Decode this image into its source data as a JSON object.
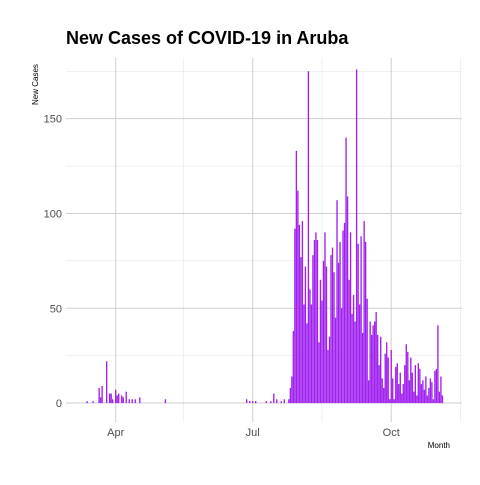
{
  "chart_data": {
    "type": "bar",
    "title": "New Cases of COVID-19 in Aruba",
    "xlabel": "Month",
    "ylabel": "New Cases",
    "x_ticks": [
      "Apr",
      "Jul",
      "Oct"
    ],
    "y_ticks": [
      0,
      50,
      100,
      150
    ],
    "ylim": [
      -10,
      182
    ],
    "xlim": [
      "2020-02-28",
      "2020-11-17"
    ],
    "bar_color": "#a020f0",
    "grid": true,
    "series": [
      {
        "values": [
          [
            "2020-03-13",
            1
          ],
          [
            "2020-03-17",
            1
          ],
          [
            "2020-03-21",
            8
          ],
          [
            "2020-03-22",
            3
          ],
          [
            "2020-03-23",
            9
          ],
          [
            "2020-03-26",
            22
          ],
          [
            "2020-03-28",
            5
          ],
          [
            "2020-03-29",
            5
          ],
          [
            "2020-03-30",
            2
          ],
          [
            "2020-04-01",
            7
          ],
          [
            "2020-04-02",
            4
          ],
          [
            "2020-04-03",
            5
          ],
          [
            "2020-04-05",
            4
          ],
          [
            "2020-04-06",
            3
          ],
          [
            "2020-04-08",
            6
          ],
          [
            "2020-04-10",
            2
          ],
          [
            "2020-04-12",
            2
          ],
          [
            "2020-04-14",
            2
          ],
          [
            "2020-04-17",
            3
          ],
          [
            "2020-05-04",
            2
          ],
          [
            "2020-06-27",
            2
          ],
          [
            "2020-06-29",
            1
          ],
          [
            "2020-07-01",
            1
          ],
          [
            "2020-07-03",
            1
          ],
          [
            "2020-07-10",
            1
          ],
          [
            "2020-07-13",
            1
          ],
          [
            "2020-07-15",
            5
          ],
          [
            "2020-07-17",
            2
          ],
          [
            "2020-07-20",
            1
          ],
          [
            "2020-07-22",
            2
          ],
          [
            "2020-07-25",
            2
          ],
          [
            "2020-07-26",
            8
          ],
          [
            "2020-07-27",
            14
          ],
          [
            "2020-07-28",
            38
          ],
          [
            "2020-07-29",
            92
          ],
          [
            "2020-07-30",
            133
          ],
          [
            "2020-07-31",
            112
          ],
          [
            "2020-08-01",
            94
          ],
          [
            "2020-08-02",
            77
          ],
          [
            "2020-08-03",
            96
          ],
          [
            "2020-08-04",
            52
          ],
          [
            "2020-08-05",
            72
          ],
          [
            "2020-08-06",
            42
          ],
          [
            "2020-08-07",
            175
          ],
          [
            "2020-08-08",
            60
          ],
          [
            "2020-08-09",
            52
          ],
          [
            "2020-08-10",
            78
          ],
          [
            "2020-08-11",
            86
          ],
          [
            "2020-08-12",
            90
          ],
          [
            "2020-08-13",
            86
          ],
          [
            "2020-08-14",
            32
          ],
          [
            "2020-08-15",
            65
          ],
          [
            "2020-08-16",
            54
          ],
          [
            "2020-08-17",
            75
          ],
          [
            "2020-08-18",
            90
          ],
          [
            "2020-08-19",
            72
          ],
          [
            "2020-08-20",
            28
          ],
          [
            "2020-08-21",
            35
          ],
          [
            "2020-08-22",
            78
          ],
          [
            "2020-08-23",
            82
          ],
          [
            "2020-08-24",
            69
          ],
          [
            "2020-08-25",
            45
          ],
          [
            "2020-08-26",
            107
          ],
          [
            "2020-08-27",
            74
          ],
          [
            "2020-08-28",
            85
          ],
          [
            "2020-08-29",
            50
          ],
          [
            "2020-08-30",
            91
          ],
          [
            "2020-08-31",
            95
          ],
          [
            "2020-09-01",
            140
          ],
          [
            "2020-09-02",
            109
          ],
          [
            "2020-09-03",
            65
          ],
          [
            "2020-09-04",
            90
          ],
          [
            "2020-09-05",
            47
          ],
          [
            "2020-09-06",
            57
          ],
          [
            "2020-09-07",
            43
          ],
          [
            "2020-09-08",
            176
          ],
          [
            "2020-09-09",
            84
          ],
          [
            "2020-09-10",
            52
          ],
          [
            "2020-09-11",
            88
          ],
          [
            "2020-09-12",
            37
          ],
          [
            "2020-09-13",
            96
          ],
          [
            "2020-09-14",
            85
          ],
          [
            "2020-09-15",
            55
          ],
          [
            "2020-09-16",
            12
          ],
          [
            "2020-09-17",
            43
          ],
          [
            "2020-09-18",
            36
          ],
          [
            "2020-09-19",
            41
          ],
          [
            "2020-09-20",
            43
          ],
          [
            "2020-09-21",
            48
          ],
          [
            "2020-09-22",
            36
          ],
          [
            "2020-09-23",
            20
          ],
          [
            "2020-09-24",
            35
          ],
          [
            "2020-09-25",
            13
          ],
          [
            "2020-09-26",
            8
          ],
          [
            "2020-09-27",
            26
          ],
          [
            "2020-09-28",
            32
          ],
          [
            "2020-09-29",
            24
          ],
          [
            "2020-09-30",
            2
          ],
          [
            "2020-10-01",
            28
          ],
          [
            "2020-10-02",
            13
          ],
          [
            "2020-10-03",
            2
          ],
          [
            "2020-10-04",
            19
          ],
          [
            "2020-10-05",
            21
          ],
          [
            "2020-10-06",
            10
          ],
          [
            "2020-10-07",
            16
          ],
          [
            "2020-10-08",
            5
          ],
          [
            "2020-10-09",
            10
          ],
          [
            "2020-10-10",
            20
          ],
          [
            "2020-10-11",
            31
          ],
          [
            "2020-10-12",
            27
          ],
          [
            "2020-10-13",
            12
          ],
          [
            "2020-10-14",
            24
          ],
          [
            "2020-10-15",
            16
          ],
          [
            "2020-10-16",
            6
          ],
          [
            "2020-10-17",
            20
          ],
          [
            "2020-10-18",
            4
          ],
          [
            "2020-10-19",
            21
          ],
          [
            "2020-10-20",
            18
          ],
          [
            "2020-10-21",
            10
          ],
          [
            "2020-10-22",
            12
          ],
          [
            "2020-10-23",
            7
          ],
          [
            "2020-10-24",
            14
          ],
          [
            "2020-10-25",
            4
          ],
          [
            "2020-10-26",
            8
          ],
          [
            "2020-10-27",
            13
          ],
          [
            "2020-10-28",
            11
          ],
          [
            "2020-10-29",
            2
          ],
          [
            "2020-10-30",
            17
          ],
          [
            "2020-10-31",
            18
          ],
          [
            "2020-11-01",
            41
          ],
          [
            "2020-11-02",
            6
          ],
          [
            "2020-11-03",
            14
          ],
          [
            "2020-11-04",
            4
          ]
        ]
      }
    ]
  }
}
